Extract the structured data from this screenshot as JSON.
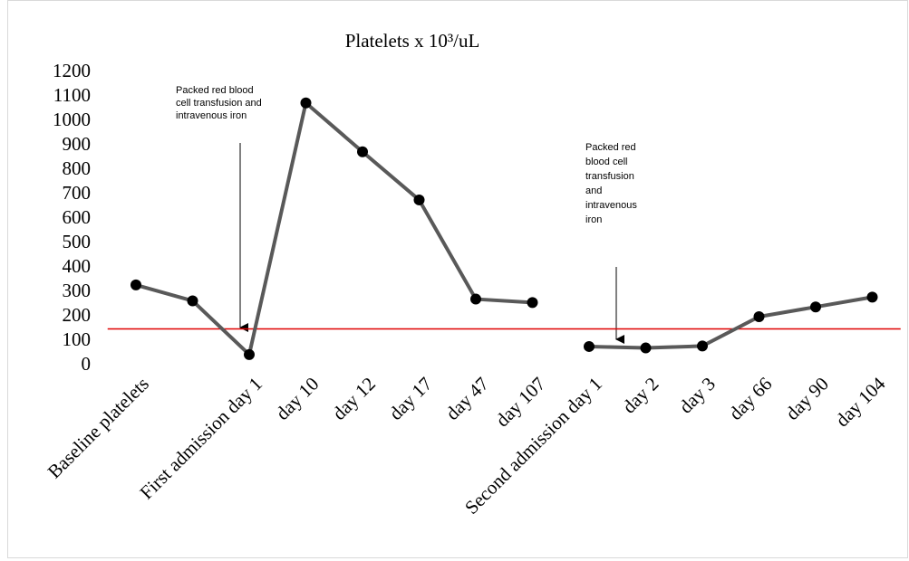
{
  "chart_data": {
    "type": "line",
    "title": "Platelets x 10³/uL",
    "categories": [
      "Baseline platelets",
      null,
      "First admission day 1",
      "day 10",
      "day 12",
      "day 17",
      "day 47",
      "day 107",
      "Second admission day 1",
      "day 2",
      "day 3",
      "day 66",
      "day 90",
      "day 104"
    ],
    "series": [
      {
        "color": "#595959",
        "values": [
          330,
          265,
          45,
          1075,
          875,
          678,
          272,
          258,
          null,
          null,
          null,
          null,
          null,
          null
        ]
      },
      {
        "color": "#595959",
        "values": [
          null,
          null,
          null,
          null,
          null,
          null,
          null,
          null,
          78,
          72,
          80,
          200,
          240,
          280
        ]
      }
    ],
    "marker_color": "#000000",
    "reference_line": {
      "value": 150,
      "color": "#e00000"
    },
    "ylim": [
      0,
      1200
    ],
    "yticks": [
      0,
      100,
      200,
      300,
      400,
      500,
      600,
      700,
      800,
      900,
      1000,
      1100,
      1200
    ],
    "annotations": [
      {
        "lines": [
          "Packed red blood",
          "cell transfusion and",
          "intravenous iron"
        ]
      },
      {
        "lines": [
          "Packed red",
          "blood cell",
          "transfusion",
          "and",
          "intravenous",
          "iron"
        ]
      }
    ]
  }
}
